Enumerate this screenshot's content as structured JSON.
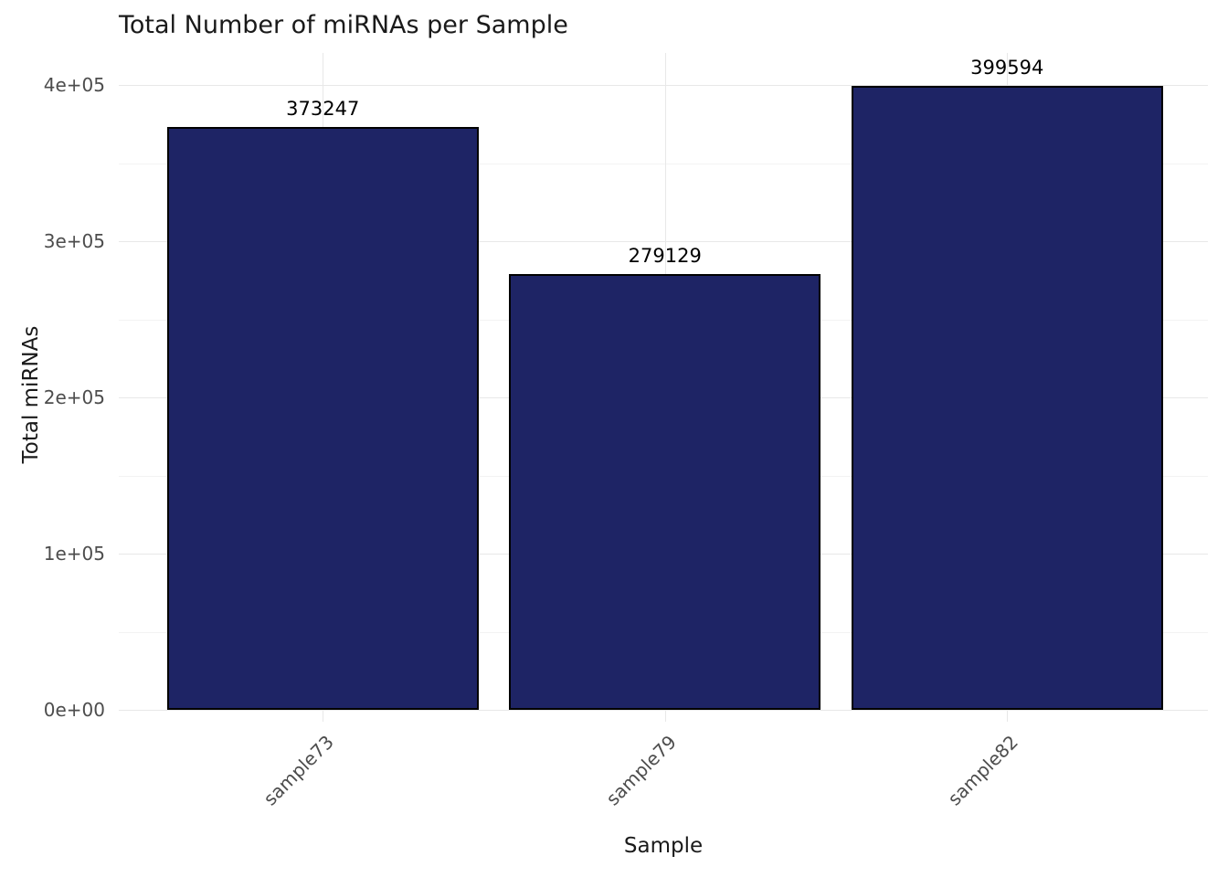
{
  "chart_data": {
    "type": "bar",
    "title": "Total Number of miRNAs per Sample",
    "xlabel": "Sample",
    "ylabel": "Total miRNAs",
    "categories": [
      "sample73",
      "sample79",
      "sample82"
    ],
    "values": [
      373247,
      279129,
      399594
    ],
    "bar_labels": [
      "373247",
      "279129",
      "399594"
    ],
    "ylim": [
      0,
      400000
    ],
    "y_ticks": [
      {
        "value": 0,
        "label": "0e+00"
      },
      {
        "value": 100000,
        "label": "1e+05"
      },
      {
        "value": 200000,
        "label": "2e+05"
      },
      {
        "value": 300000,
        "label": "3e+05"
      },
      {
        "value": 400000,
        "label": "4e+05"
      }
    ],
    "y_minor_ticks": [
      50000,
      150000,
      250000,
      350000
    ],
    "grid": true,
    "legend": "none",
    "colors": {
      "bar_fill": "#1e2465",
      "bar_border": "#000000",
      "grid_major": "#e8e8e8",
      "grid_minor": "#f3f3f3",
      "tick_label": "#4d4d4d",
      "text": "#1a1a1a",
      "background": "#ffffff"
    }
  }
}
